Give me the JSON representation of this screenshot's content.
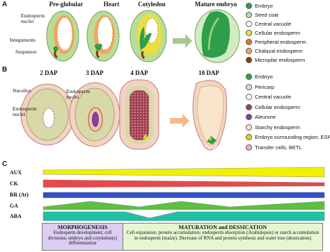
{
  "panel_a": {
    "label": "A",
    "stages": [
      "Pre-globular",
      "Heart",
      "Cotyledon",
      "Mature embryo"
    ],
    "annotations": [
      "Endosperm nuclei",
      "Integuments",
      "Suspensor"
    ],
    "legend": [
      {
        "label": "Embryo",
        "color": "#2e9e4a"
      },
      {
        "label": "Seed coat",
        "color": "#b9dc98"
      },
      {
        "label": "Central vacuole",
        "color": "#ffffff"
      },
      {
        "label": "Cellular endosperm",
        "color": "#e8e040"
      },
      {
        "label": "Peripheral endosperm",
        "color": "#e07820"
      },
      {
        "label": "Chalazal endosperm",
        "color": "#f4a460"
      },
      {
        "label": "Micropilar endosperm",
        "color": "#8b3a0a"
      }
    ]
  },
  "panel_b": {
    "label": "B",
    "stages": [
      "2 DAP",
      "3 DAP",
      "4 DAP",
      "10 DAP"
    ],
    "annotations": [
      "Nucellus",
      "Endosperm nuclei",
      "Endosperm nuclei"
    ],
    "legend": [
      {
        "label": "Embryo",
        "color": "#2e9e4a"
      },
      {
        "label": "Pericarp",
        "color": "#f0d4c4"
      },
      {
        "label": "Central vacuole",
        "color": "#ffffff"
      },
      {
        "label": "Cellular endosperm",
        "color": "#a04050"
      },
      {
        "label": "Aleurone",
        "color": "#8040a0"
      },
      {
        "label": "Starchy endosperm",
        "color": "#f8e4cc"
      },
      {
        "label": "Embryo surrounding region, ESR",
        "color": "#e8d020"
      },
      {
        "label": "Transfer cells, BETL",
        "color": "#f4b0b0"
      }
    ]
  },
  "panel_c": {
    "label": "C",
    "hormones": [
      "AUX",
      "CK",
      "BR (At)",
      "GA",
      "ABA"
    ],
    "phases": [
      {
        "title": "MORPHOGENESIS",
        "text": "Endosperm development; cell divisions; embryo and cotyledon(s) differentiation"
      },
      {
        "title": "MATURATION and DESSICATION",
        "text": "Cell expansion; protein accumulation; endosperm absorption (Arabidopsis) or starch accumulation in endosperm (maize). Decrease of RNA and protein synthesis and water loss (dessication)"
      }
    ]
  }
}
